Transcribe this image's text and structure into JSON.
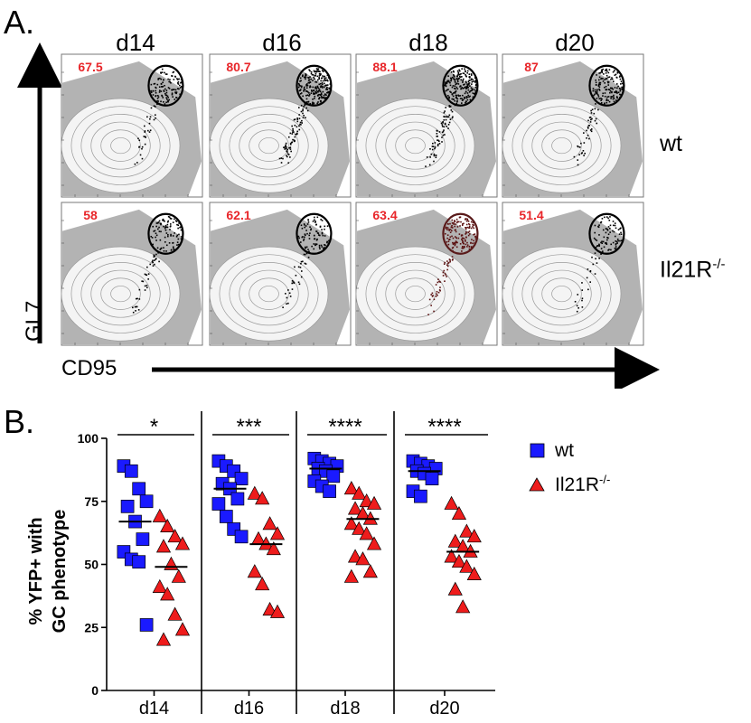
{
  "panel_a": {
    "label": "A.",
    "days": [
      "d14",
      "d16",
      "d18",
      "d20"
    ],
    "rows": [
      {
        "name": "wt",
        "percents": [
          "67.5",
          "80.7",
          "88.1",
          "87"
        ],
        "density": [
          0.4,
          1.0,
          0.9,
          0.6
        ]
      },
      {
        "name": "Il21R",
        "superscript": "-/-",
        "percents": [
          "58",
          "62.1",
          "63.4",
          "51.4"
        ],
        "density": [
          0.35,
          0.3,
          0.6,
          0.25
        ]
      }
    ],
    "y_axis_label": "GL7",
    "x_axis_label": "CD95",
    "percent_color": "#e8262a",
    "background_color": "#b3b3b3"
  },
  "panel_b": {
    "label": "B.",
    "y_axis_label_line1": "% YFP+ with",
    "y_axis_label_line2": "GC phenotype",
    "legend": [
      {
        "label": "wt",
        "marker": "square",
        "color": "#1a1aff"
      },
      {
        "label": "Il21R",
        "superscript": "-/-",
        "marker": "triangle",
        "color": "#ee1c1c"
      }
    ]
  },
  "chart_data": {
    "type": "scatter",
    "ylim": [
      0,
      100
    ],
    "yticks": [
      "0",
      "25",
      "50",
      "75",
      "100"
    ],
    "categories": [
      "d14",
      "d16",
      "d18",
      "d20"
    ],
    "significance": [
      "*",
      "***",
      "****",
      "****"
    ],
    "series": [
      {
        "name": "wt",
        "marker": "square",
        "color": "#1a1aff",
        "values": [
          [
            89,
            87,
            80,
            75,
            73,
            67,
            60,
            55,
            52,
            51,
            26
          ],
          [
            91,
            89,
            87,
            84,
            82,
            80,
            76,
            74,
            69,
            64,
            61
          ],
          [
            92,
            91,
            90,
            89,
            88,
            87,
            85,
            83,
            81,
            79
          ],
          [
            91,
            90,
            89,
            88,
            87,
            86,
            84,
            79,
            77
          ]
        ],
        "means": [
          67,
          80,
          88,
          87
        ]
      },
      {
        "name": "Il21R-/-",
        "marker": "triangle",
        "color": "#ee1c1c",
        "values": [
          [
            69,
            65,
            61,
            58,
            57,
            50,
            45,
            41,
            38,
            30,
            24,
            20
          ],
          [
            78,
            76,
            66,
            62,
            60,
            58,
            56,
            47,
            42,
            32,
            31
          ],
          [
            80,
            78,
            75,
            74,
            72,
            70,
            68,
            66,
            64,
            62,
            58,
            53,
            52,
            47,
            45
          ],
          [
            74,
            70,
            63,
            61,
            59,
            57,
            55,
            53,
            51,
            49,
            46,
            40,
            33
          ]
        ],
        "means": [
          49,
          58,
          68,
          55
        ]
      }
    ]
  }
}
